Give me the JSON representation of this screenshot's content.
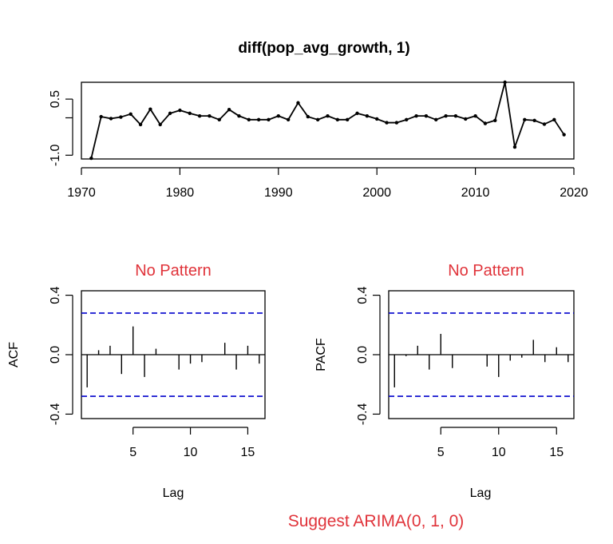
{
  "colors": {
    "ink": "#000000",
    "ci": "#0000cc",
    "annotation": "#e0333a",
    "background": "#ffffff"
  },
  "chart_data": [
    {
      "type": "line",
      "title": "diff(pop_avg_growth, 1)",
      "xlabel": "",
      "ylabel": "",
      "xlim": [
        1970,
        2020
      ],
      "ylim": [
        -1.1,
        0.95
      ],
      "x_ticks": [
        1970,
        1980,
        1990,
        2000,
        2010,
        2020
      ],
      "y_ticks": [
        0.5,
        0,
        -1.0
      ],
      "y_tick_labels": [
        "0.5",
        "",
        "-1.0"
      ],
      "x": [
        1971,
        1972,
        1973,
        1974,
        1975,
        1976,
        1977,
        1978,
        1979,
        1980,
        1981,
        1982,
        1983,
        1984,
        1985,
        1986,
        1987,
        1988,
        1989,
        1990,
        1991,
        1992,
        1993,
        1994,
        1995,
        1996,
        1997,
        1998,
        1999,
        2000,
        2001,
        2002,
        2003,
        2004,
        2005,
        2006,
        2007,
        2008,
        2009,
        2010,
        2011,
        2012,
        2013,
        2014,
        2015,
        2016,
        2017,
        2018,
        2019
      ],
      "y": [
        -1.08,
        0.03,
        -0.02,
        0.02,
        0.1,
        -0.18,
        0.23,
        -0.18,
        0.12,
        0.2,
        0.12,
        0.05,
        0.05,
        -0.05,
        0.22,
        0.05,
        -0.05,
        -0.05,
        -0.05,
        0.05,
        -0.05,
        0.4,
        0.03,
        -0.05,
        0.05,
        -0.05,
        -0.05,
        0.12,
        0.05,
        -0.03,
        -0.13,
        -0.13,
        -0.05,
        0.05,
        0.05,
        -0.05,
        0.05,
        0.05,
        -0.03,
        0.05,
        -0.15,
        -0.07,
        0.95,
        -0.78,
        -0.05,
        -0.07,
        -0.17,
        -0.05,
        -0.45
      ]
    },
    {
      "type": "bar",
      "title": "No Pattern",
      "xlabel": "Lag",
      "ylabel": "ACF",
      "xlim": [
        0.5,
        16.5
      ],
      "ylim": [
        -0.43,
        0.43
      ],
      "x_ticks": [
        5,
        10,
        15
      ],
      "y_ticks": [
        -0.4,
        0.0,
        0.4
      ],
      "y_tick_labels": [
        "-0.4",
        "0.0",
        "0.4"
      ],
      "ci": 0.28,
      "lags": [
        1,
        2,
        3,
        4,
        5,
        6,
        7,
        8,
        9,
        10,
        11,
        12,
        13,
        14,
        15,
        16
      ],
      "values": [
        -0.22,
        0.03,
        0.06,
        -0.13,
        0.19,
        -0.15,
        0.04,
        0.0,
        -0.1,
        -0.06,
        -0.05,
        0.0,
        0.08,
        -0.1,
        0.06,
        -0.06
      ]
    },
    {
      "type": "bar",
      "title": "No Pattern",
      "xlabel": "Lag",
      "ylabel": "PACF",
      "xlim": [
        0.5,
        16.5
      ],
      "ylim": [
        -0.43,
        0.43
      ],
      "x_ticks": [
        5,
        10,
        15
      ],
      "y_ticks": [
        -0.4,
        0.0,
        0.4
      ],
      "y_tick_labels": [
        "-0.4",
        "0.0",
        "0.4"
      ],
      "ci": 0.28,
      "lags": [
        1,
        2,
        3,
        4,
        5,
        6,
        7,
        8,
        9,
        10,
        11,
        12,
        13,
        14,
        15,
        16
      ],
      "values": [
        -0.22,
        -0.01,
        0.06,
        -0.1,
        0.14,
        -0.09,
        0.0,
        0.0,
        -0.08,
        -0.15,
        -0.04,
        -0.02,
        0.1,
        -0.05,
        0.05,
        -0.05
      ]
    }
  ],
  "suggestion": "Suggest ARIMA(0, 1, 0)"
}
